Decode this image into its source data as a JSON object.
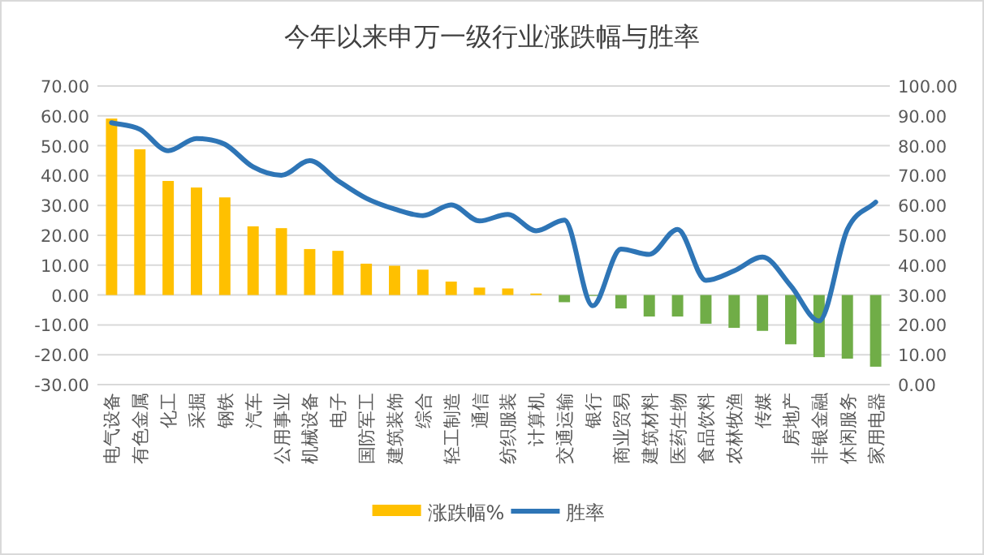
{
  "chart_data": {
    "type": "bar",
    "title": "今年以来申万一级行业涨跌幅与胜率",
    "categories": [
      "电气设备",
      "有色金属",
      "化工",
      "采掘",
      "钢铁",
      "汽车",
      "公用事业",
      "机械设备",
      "电子",
      "国防军工",
      "建筑装饰",
      "综合",
      "轻工制造",
      "通信",
      "纺织服装",
      "计算机",
      "交通运输",
      "银行",
      "商业贸易",
      "建筑材料",
      "医药生物",
      "食品饮料",
      "农林牧渔",
      "传媒",
      "房地产",
      "非银金融",
      "休闲服务",
      "家用电器"
    ],
    "series": [
      {
        "name": "涨跌幅%",
        "color": "#ffc000",
        "colors": [
          "#ffc000",
          "#ffc000",
          "#ffc000",
          "#ffc000",
          "#ffc000",
          "#ffc000",
          "#ffc000",
          "#ffc000",
          "#ffc000",
          "#ffc000",
          "#ffc000",
          "#ffc000",
          "#ffc000",
          "#ffc000",
          "#ffc000",
          "#ffc000",
          "#70ad47",
          "#70ad47",
          "#70ad47",
          "#70ad47",
          "#70ad47",
          "#70ad47",
          "#70ad47",
          "#70ad47",
          "#70ad47",
          "#70ad47",
          "#70ad47",
          "#70ad47"
        ],
        "values": [
          59.1,
          48.8,
          38.2,
          36,
          32.7,
          23,
          22.4,
          15.4,
          14.8,
          10.5,
          9.8,
          8.5,
          4.5,
          2.5,
          2.2,
          0.5,
          -2.4,
          -0.3,
          -4.5,
          -7.2,
          -7.2,
          -9.6,
          -11,
          -12,
          -16.5,
          -20.8,
          -21.3,
          -24
        ]
      },
      {
        "name": "胜率",
        "type": "line",
        "axis": "y2",
        "color": "#2e75b6",
        "values": [
          87.7,
          85.5,
          78.3,
          82.4,
          80.5,
          72.9,
          70.1,
          75,
          68.3,
          62.4,
          58.8,
          56.6,
          60.2,
          54.8,
          57,
          51.5,
          55.1,
          26.4,
          45.4,
          43.6,
          52,
          34.9,
          38.1,
          42.7,
          33.1,
          21.3,
          52,
          61.1
        ]
      }
    ],
    "ylim": [
      -30,
      70
    ],
    "yticks": [
      {
        "value": -30,
        "label": "-30.00"
      },
      {
        "value": -20,
        "label": "-20.00"
      },
      {
        "value": -10,
        "label": "-10.00"
      },
      {
        "value": 0,
        "label": "0.00"
      },
      {
        "value": 10,
        "label": "10.00"
      },
      {
        "value": 20,
        "label": "20.00"
      },
      {
        "value": 30,
        "label": "30.00"
      },
      {
        "value": 40,
        "label": "40.00"
      },
      {
        "value": 50,
        "label": "50.00"
      },
      {
        "value": 60,
        "label": "60.00"
      },
      {
        "value": 70,
        "label": "70.00"
      }
    ],
    "y2lim": [
      0,
      100
    ],
    "y2ticks": [
      {
        "value": 0,
        "label": "0.00"
      },
      {
        "value": 10,
        "label": "10.00"
      },
      {
        "value": 20,
        "label": "20.00"
      },
      {
        "value": 30,
        "label": "30.00"
      },
      {
        "value": 40,
        "label": "40.00"
      },
      {
        "value": 50,
        "label": "50.00"
      },
      {
        "value": 60,
        "label": "60.00"
      },
      {
        "value": 70,
        "label": "70.00"
      },
      {
        "value": 80,
        "label": "80.00"
      },
      {
        "value": 90,
        "label": "90.00"
      },
      {
        "value": 100,
        "label": "100.00"
      }
    ],
    "grid": "y",
    "legend": "bottom"
  }
}
